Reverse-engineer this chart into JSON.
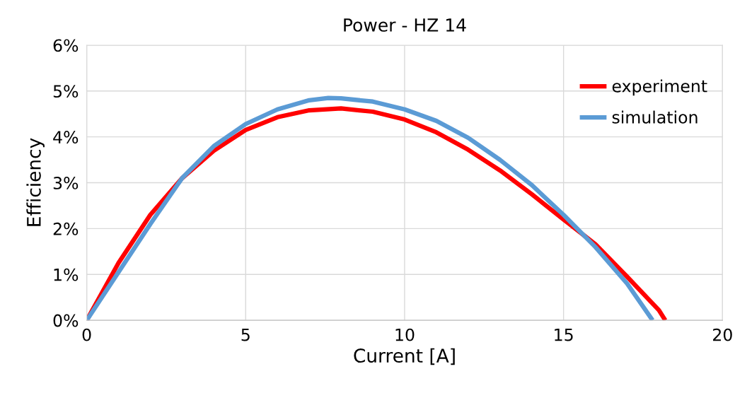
{
  "chart_data": {
    "type": "line",
    "title": "Power - HZ 14",
    "xlabel": "Current [A]",
    "ylabel": "Efficiency",
    "xlim": [
      0,
      20
    ],
    "xticks": [
      0,
      5,
      10,
      15,
      20
    ],
    "ylim": [
      0,
      6
    ],
    "yticks": [
      {
        "value": 0,
        "label": "0%"
      },
      {
        "value": 1,
        "label": "1%"
      },
      {
        "value": 2,
        "label": "2%"
      },
      {
        "value": 3,
        "label": "3%"
      },
      {
        "value": 4,
        "label": "4%"
      },
      {
        "value": 5,
        "label": "5%"
      },
      {
        "value": 6,
        "label": "6%"
      }
    ],
    "grid": true,
    "legend": "top right",
    "marker": "none",
    "line_style": "solid",
    "series": [
      {
        "name": "experiment",
        "color": "#ff0000",
        "x": [
          0,
          1,
          2,
          3,
          4,
          5,
          6,
          7,
          8,
          9,
          10,
          11,
          12,
          13,
          14,
          15,
          16,
          17,
          18,
          18.2
        ],
        "values": [
          0,
          1.25,
          2.3,
          3.1,
          3.7,
          4.15,
          4.43,
          4.58,
          4.62,
          4.55,
          4.38,
          4.1,
          3.72,
          3.27,
          2.75,
          2.2,
          1.66,
          0.95,
          0.22,
          0
        ]
      },
      {
        "name": "simulation",
        "color": "#5b9bd5",
        "x": [
          0,
          1,
          2,
          3,
          4,
          5,
          6,
          7,
          7.6,
          8,
          9,
          10,
          11,
          12,
          13,
          14,
          15,
          16,
          17,
          17.8
        ],
        "values": [
          0,
          1.05,
          2.1,
          3.1,
          3.8,
          4.28,
          4.6,
          4.8,
          4.85,
          4.84,
          4.77,
          4.6,
          4.35,
          3.98,
          3.5,
          2.95,
          2.3,
          1.6,
          0.8,
          0
        ]
      }
    ]
  }
}
